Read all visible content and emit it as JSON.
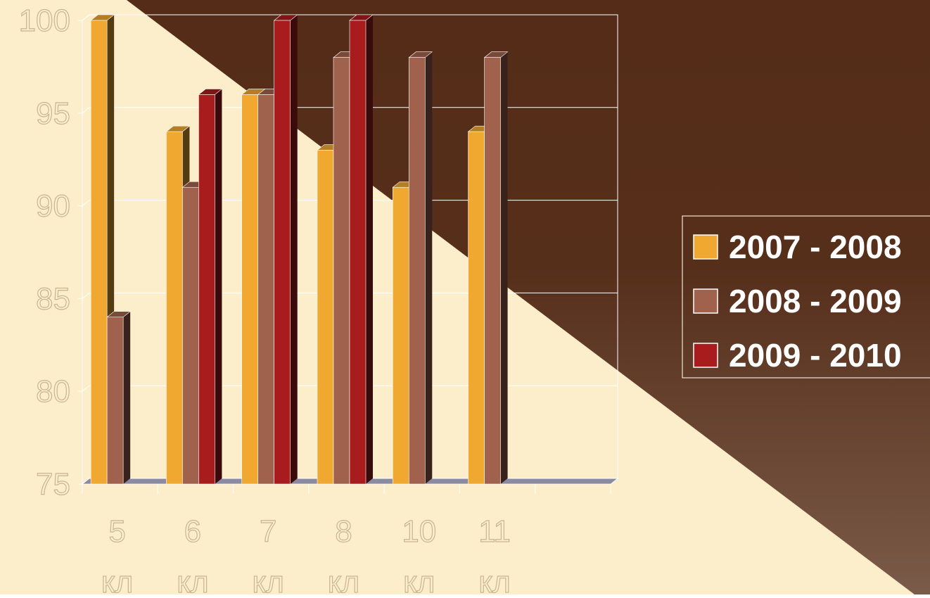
{
  "chart_data": {
    "type": "bar",
    "categories": [
      {
        "num": "5",
        "unit": "кл"
      },
      {
        "num": "6",
        "unit": "кл"
      },
      {
        "num": "7",
        "unit": "кл"
      },
      {
        "num": "8",
        "unit": "кл"
      },
      {
        "num": "10",
        "unit": "кл"
      },
      {
        "num": "11",
        "unit": "кл"
      },
      {
        "num": "",
        "unit": ""
      }
    ],
    "series": [
      {
        "name": "2007 - 2008",
        "color": "#F0A830",
        "values": [
          100,
          94,
          96,
          93,
          91,
          94,
          null
        ]
      },
      {
        "name": "2008 - 2009",
        "color": "#A0624C",
        "values": [
          84,
          91,
          96,
          98,
          98,
          98,
          null
        ]
      },
      {
        "name": "2009 - 2010",
        "color": "#A81C1E",
        "values": [
          null,
          96,
          100,
          100,
          null,
          null,
          null
        ]
      }
    ],
    "yticks": [
      "75",
      "80",
      "85",
      "90",
      "95",
      "100"
    ],
    "ylim": [
      75,
      100
    ],
    "title": "",
    "xlabel": "",
    "ylabel": "",
    "grid": true,
    "legend": "right"
  },
  "colors": {
    "background_light": "#FDEECB",
    "background_dark": "#542C18",
    "background_dark_bottom": "#7A5A48",
    "axis_text": "#FDEECB"
  }
}
